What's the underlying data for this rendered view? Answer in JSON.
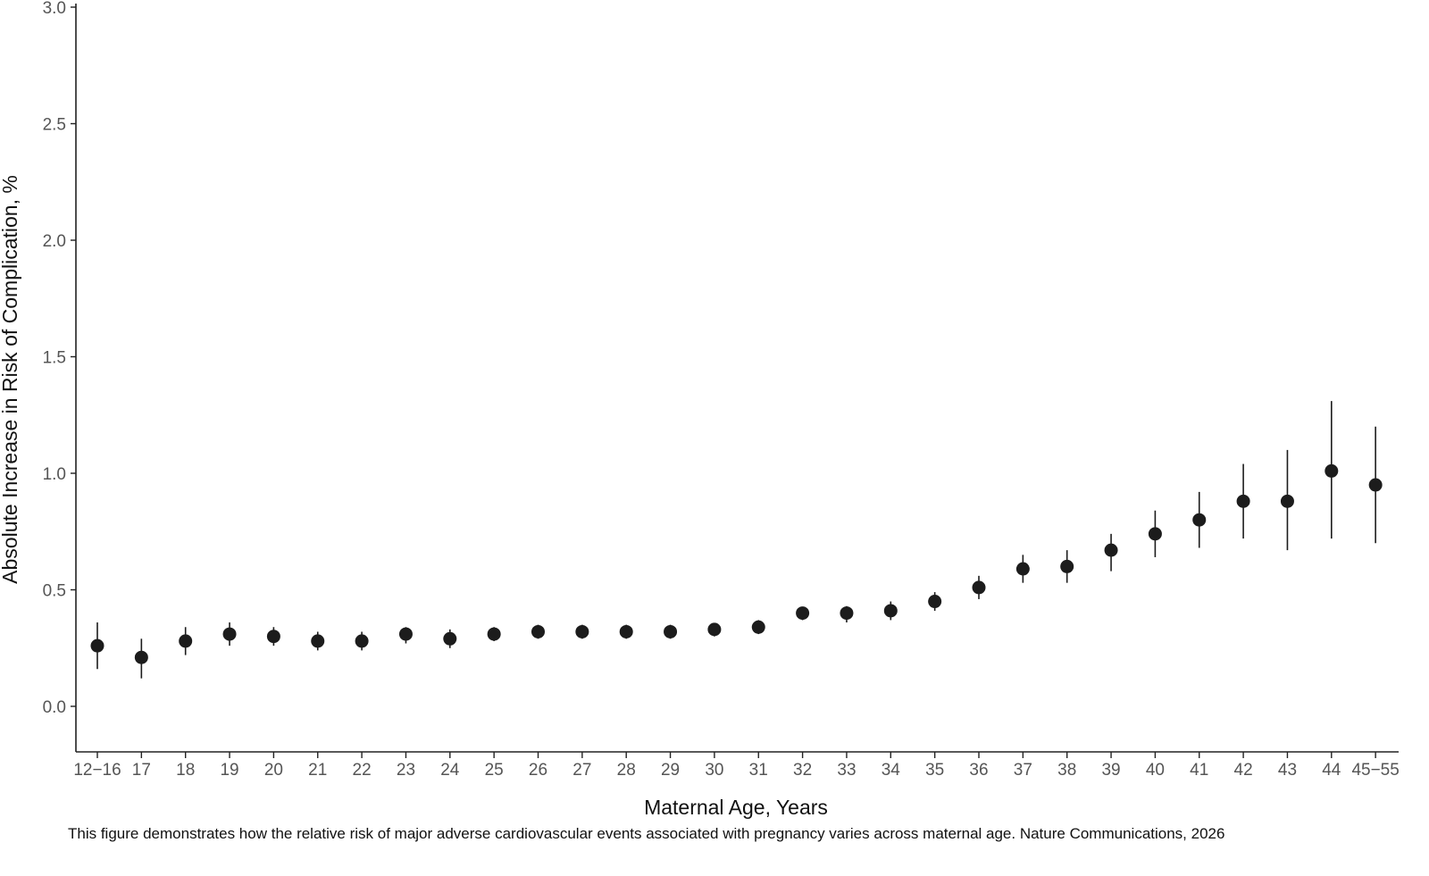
{
  "chart_data": {
    "type": "scatter",
    "title": "",
    "xlabel": "Maternal Age, Years",
    "ylabel": "Absolute Increase in Risk of Complication, %",
    "ylim": [
      -0.2,
      3.05
    ],
    "yticks": [
      "0.0",
      "0.5",
      "1.0",
      "1.5",
      "2.0",
      "2.5",
      "3.0"
    ],
    "grid": false,
    "legend": "none",
    "categories": [
      "12−16",
      "17",
      "18",
      "19",
      "20",
      "21",
      "22",
      "23",
      "24",
      "25",
      "26",
      "27",
      "28",
      "29",
      "30",
      "31",
      "32",
      "33",
      "34",
      "35",
      "36",
      "37",
      "38",
      "39",
      "40",
      "41",
      "42",
      "43",
      "44",
      "45−55"
    ],
    "values": [
      0.26,
      0.21,
      0.28,
      0.31,
      0.3,
      0.28,
      0.28,
      0.31,
      0.29,
      0.31,
      0.32,
      0.32,
      0.32,
      0.32,
      0.33,
      0.34,
      0.4,
      0.4,
      0.41,
      0.45,
      0.51,
      0.59,
      0.6,
      0.67,
      0.74,
      0.8,
      0.88,
      0.88,
      1.01,
      0.95
    ],
    "lower": [
      0.16,
      0.12,
      0.22,
      0.26,
      0.26,
      0.24,
      0.24,
      0.27,
      0.25,
      0.28,
      0.29,
      0.29,
      0.29,
      0.29,
      0.3,
      0.31,
      0.37,
      0.36,
      0.37,
      0.41,
      0.46,
      0.53,
      0.53,
      0.58,
      0.64,
      0.68,
      0.72,
      0.67,
      0.72,
      0.7
    ],
    "upper": [
      0.36,
      0.29,
      0.34,
      0.36,
      0.34,
      0.32,
      0.32,
      0.34,
      0.33,
      0.34,
      0.35,
      0.35,
      0.35,
      0.35,
      0.35,
      0.37,
      0.42,
      0.43,
      0.45,
      0.49,
      0.56,
      0.65,
      0.67,
      0.74,
      0.84,
      0.92,
      1.04,
      1.1,
      1.31,
      1.2
    ],
    "colors": {
      "point": "#1c1c1c",
      "axis": "#222222",
      "tick_text": "#555555"
    }
  },
  "caption": "This figure demonstrates how the relative risk of major adverse cardiovascular events associated with pregnancy varies across maternal age. Nature Communications, 2026"
}
